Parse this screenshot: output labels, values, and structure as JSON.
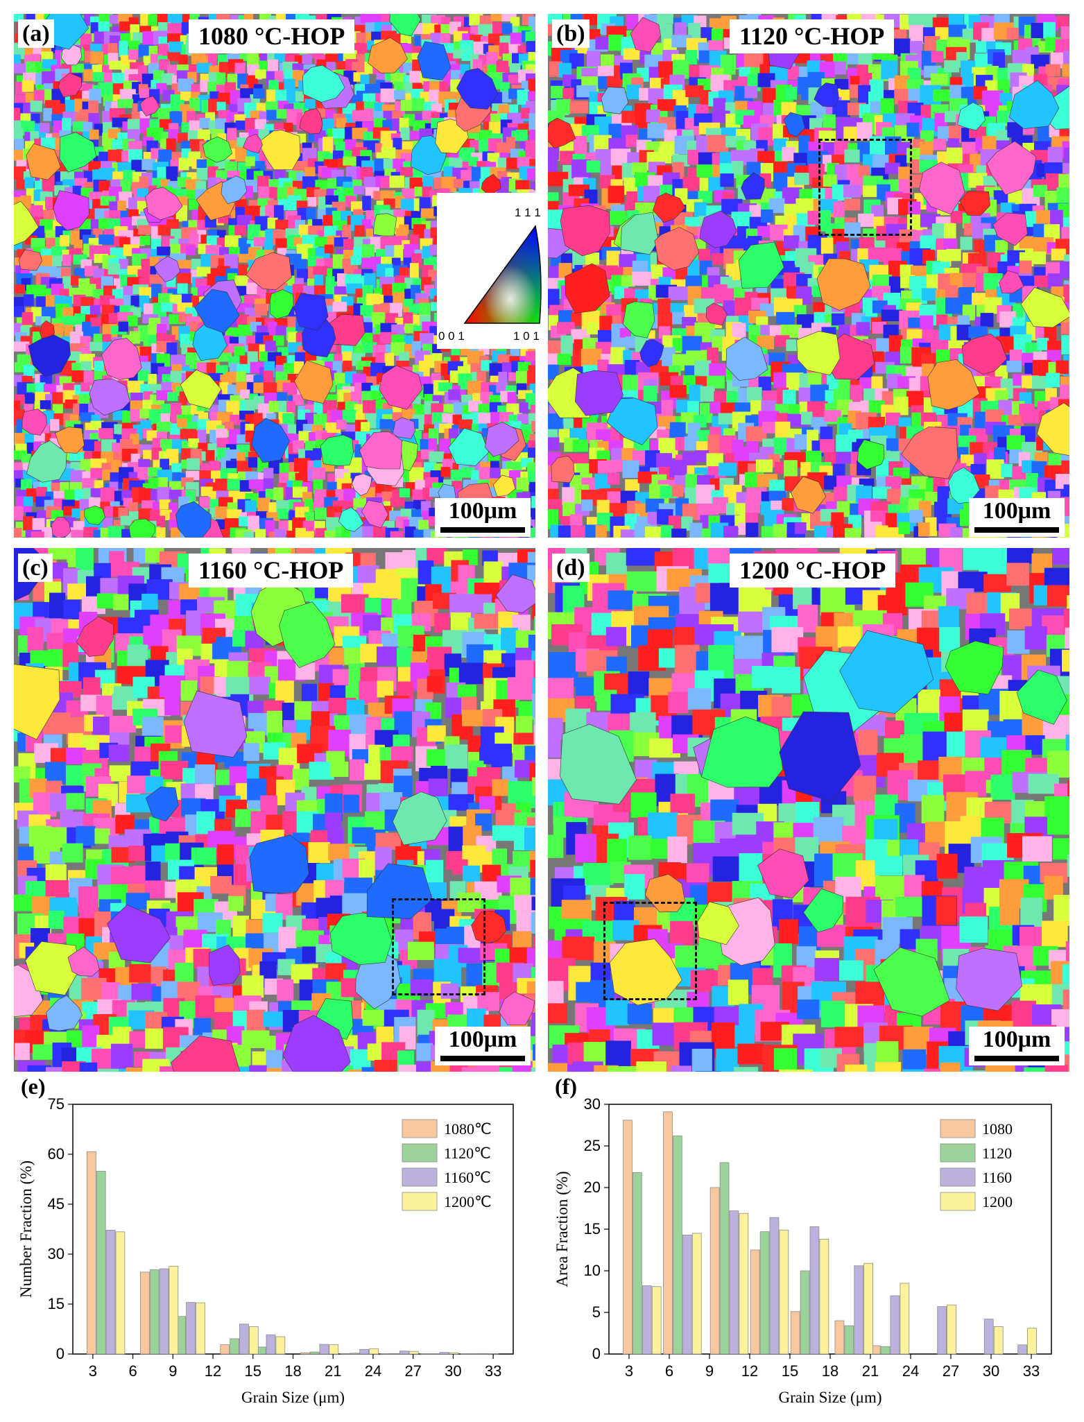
{
  "panels": [
    {
      "tag": "(a)",
      "title": "1080 °C-HOP",
      "scale": "100μm"
    },
    {
      "tag": "(b)",
      "title": "1120 °C-HOP",
      "scale": "100μm"
    },
    {
      "tag": "(c)",
      "title": "1160 °C-HOP",
      "scale": "100μm"
    },
    {
      "tag": "(d)",
      "title": "1200 °C-HOP",
      "scale": "100μm"
    }
  ],
  "ipf_key": {
    "top": "1 1 1",
    "left": "0 0 1",
    "right": "1 0 1"
  },
  "chart_data": [
    {
      "tag": "(e)",
      "type": "bar",
      "xlabel": "Grain Size (μm)",
      "ylabel": "Number Fraction (%)",
      "xlim": [
        1.5,
        34.5
      ],
      "ylim": [
        0,
        75
      ],
      "xticks": [
        3,
        6,
        9,
        12,
        15,
        18,
        21,
        24,
        27,
        30,
        33
      ],
      "yticks": [
        0,
        15,
        30,
        45,
        60,
        75
      ],
      "legend_position": "top-right",
      "categories": [
        4,
        8,
        10,
        14,
        16,
        20,
        23,
        26,
        29,
        32
      ],
      "series": [
        {
          "name": "1080℃",
          "color": "#f9c89e",
          "values": [
            60.8,
            24.6,
            8.3,
            2.8,
            1.0,
            0.4,
            0.15,
            0.1,
            0.1,
            0.05
          ]
        },
        {
          "name": "1120℃",
          "color": "#9bd39b",
          "values": [
            54.9,
            25.3,
            11.3,
            4.6,
            2.1,
            0.6,
            0.25,
            0.15,
            0.1,
            0.05
          ]
        },
        {
          "name": "1160℃",
          "color": "#bdb1de",
          "values": [
            37.2,
            25.6,
            15.5,
            9.0,
            5.8,
            2.9,
            1.4,
            0.9,
            0.5,
            0.15
          ]
        },
        {
          "name": "1200℃",
          "color": "#fdf29c",
          "values": [
            36.7,
            26.4,
            15.4,
            8.2,
            5.2,
            2.8,
            1.6,
            0.8,
            0.4,
            0.1
          ]
        }
      ]
    },
    {
      "tag": "(f)",
      "type": "bar",
      "xlabel": "Grain Size (μm)",
      "ylabel": "Area Fraction (%)",
      "xlim": [
        1.5,
        34.5
      ],
      "ylim": [
        0,
        30
      ],
      "xticks": [
        3,
        6,
        9,
        12,
        15,
        18,
        21,
        24,
        27,
        30,
        33
      ],
      "yticks": [
        0,
        5,
        10,
        15,
        20,
        25,
        30
      ],
      "legend_position": "top-right",
      "categories": [
        4,
        7,
        10.5,
        13.5,
        16.5,
        19.8,
        22.5,
        26,
        29.5,
        32
      ],
      "series": [
        {
          "name": "1080",
          "color": "#f9c89e",
          "values": [
            28.1,
            29.1,
            20.0,
            12.5,
            5.1,
            4.0,
            1.0,
            0,
            0,
            0
          ]
        },
        {
          "name": "1120",
          "color": "#9bd39b",
          "values": [
            21.8,
            26.2,
            23.0,
            14.7,
            10.0,
            3.4,
            0.9,
            0,
            0,
            0
          ]
        },
        {
          "name": "1160",
          "color": "#bdb1de",
          "values": [
            8.2,
            14.3,
            17.2,
            16.4,
            15.3,
            10.6,
            7.0,
            5.7,
            4.2,
            1.1
          ]
        },
        {
          "name": "1200",
          "color": "#fdf29c",
          "values": [
            8.1,
            14.5,
            16.9,
            14.9,
            13.8,
            10.9,
            8.5,
            5.9,
            3.3,
            3.1
          ]
        }
      ]
    }
  ]
}
